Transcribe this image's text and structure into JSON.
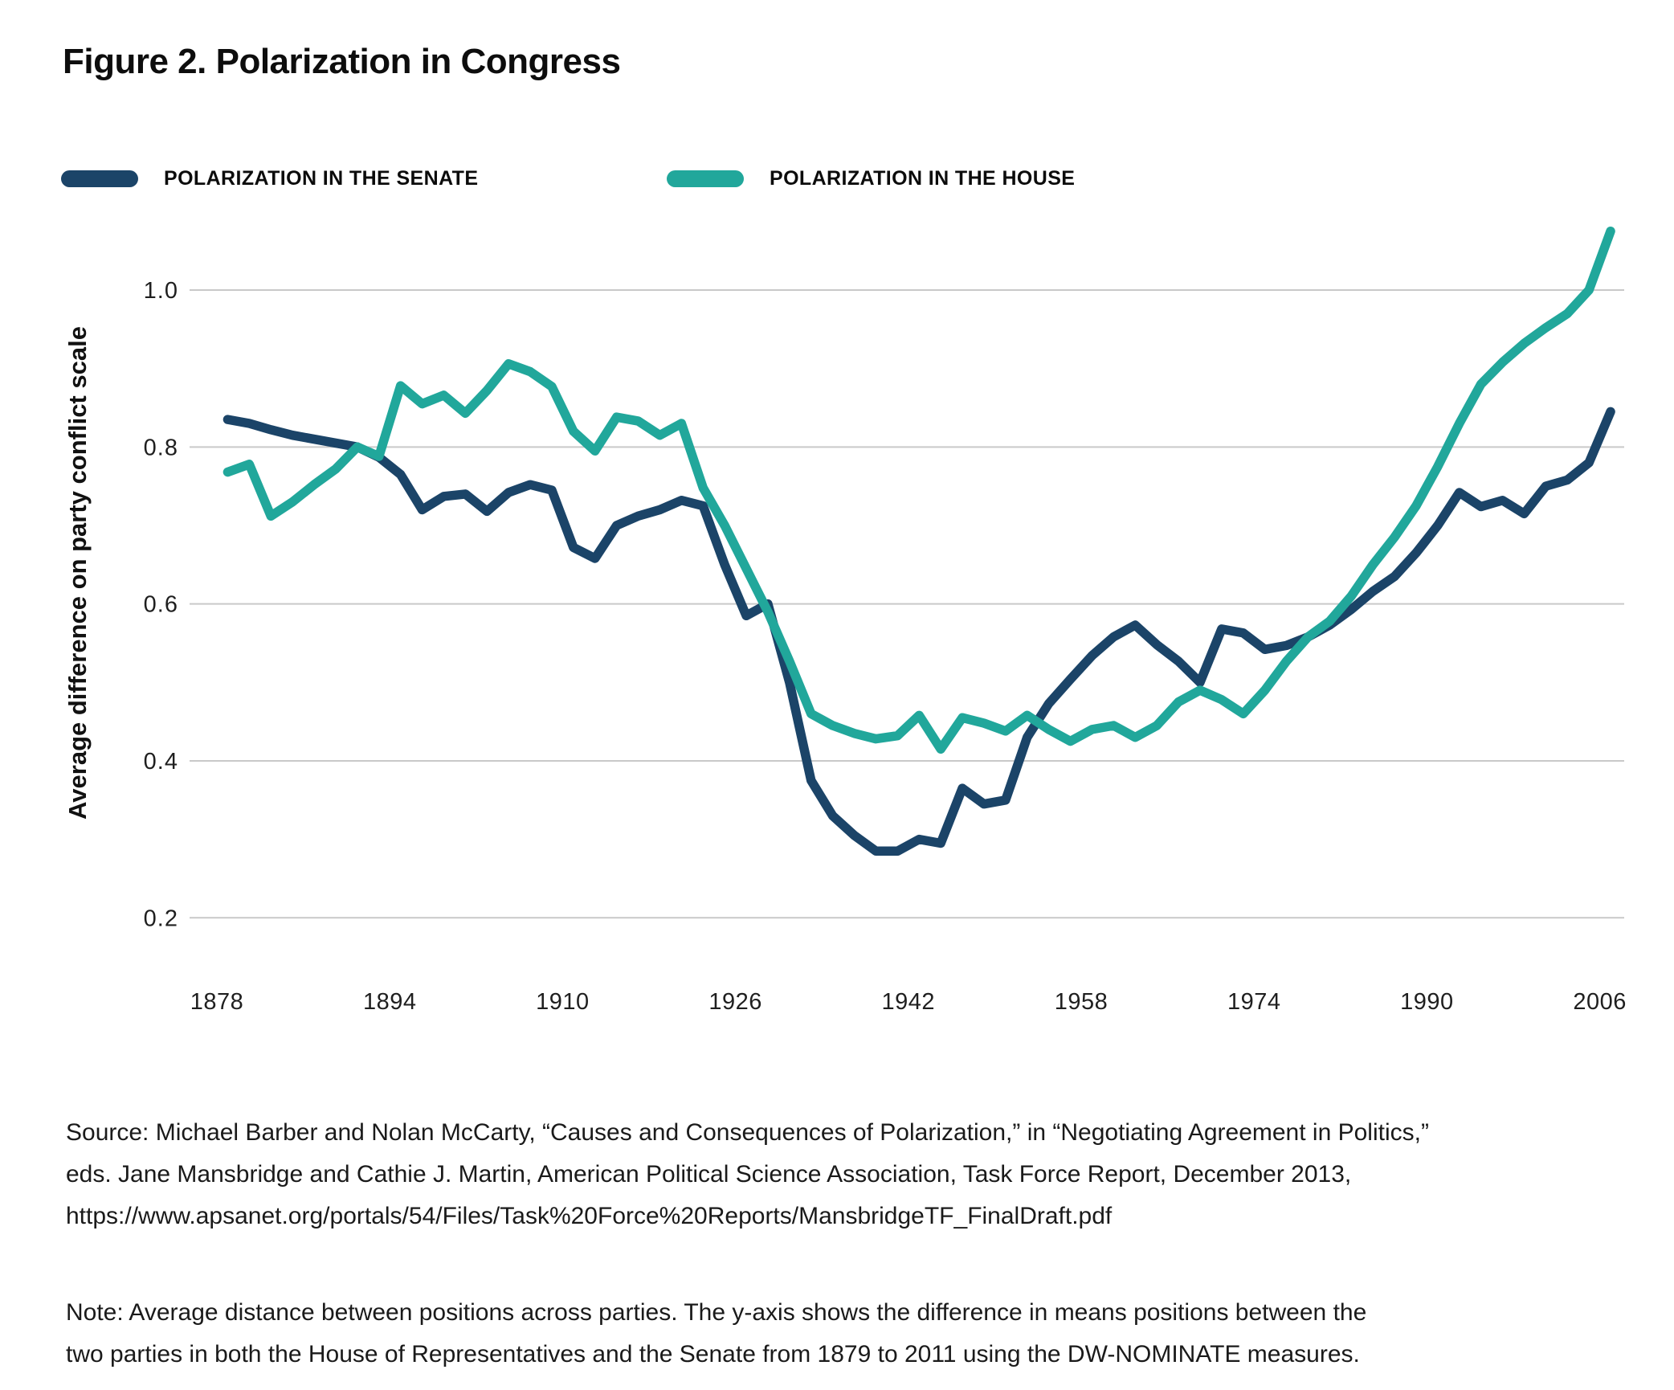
{
  "header": {
    "title": "Figure 2. Polarization in Congress"
  },
  "legend": {
    "senate": {
      "label": "POLARIZATION IN THE SENATE",
      "color": "#1b4468"
    },
    "house": {
      "label": "POLARIZATION IN THE HOUSE",
      "color": "#21a79b"
    }
  },
  "chart_data": {
    "type": "line",
    "title": "Figure 2. Polarization in Congress",
    "xlabel": "",
    "ylabel": "Average difference on party conflict scale",
    "ylim": [
      0.15,
      1.1
    ],
    "yticks": [
      0.2,
      0.4,
      0.6,
      0.8,
      1.0
    ],
    "xticks": [
      1878,
      1894,
      1910,
      1926,
      1942,
      1958,
      1974,
      1990,
      2006
    ],
    "grid": "horizontal-only",
    "legend_position": "top-left",
    "x": [
      1879,
      1881,
      1883,
      1885,
      1887,
      1889,
      1891,
      1893,
      1895,
      1897,
      1899,
      1901,
      1903,
      1905,
      1907,
      1909,
      1911,
      1913,
      1915,
      1917,
      1919,
      1921,
      1923,
      1925,
      1927,
      1929,
      1931,
      1933,
      1935,
      1937,
      1939,
      1941,
      1943,
      1945,
      1947,
      1949,
      1951,
      1953,
      1955,
      1957,
      1959,
      1961,
      1963,
      1965,
      1967,
      1969,
      1971,
      1973,
      1975,
      1977,
      1979,
      1981,
      1983,
      1985,
      1987,
      1989,
      1991,
      1993,
      1995,
      1997,
      1999,
      2001,
      2003,
      2005,
      2007
    ],
    "series": [
      {
        "name": "Polarization in the Senate",
        "color": "#1b4468",
        "values": [
          0.835,
          0.83,
          0.822,
          0.815,
          0.81,
          0.805,
          0.8,
          0.787,
          0.765,
          0.72,
          0.737,
          0.74,
          0.718,
          0.742,
          0.752,
          0.745,
          0.672,
          0.658,
          0.7,
          0.712,
          0.72,
          0.732,
          0.725,
          0.65,
          0.585,
          0.6,
          0.5,
          0.375,
          0.33,
          0.305,
          0.285,
          0.285,
          0.3,
          0.295,
          0.365,
          0.345,
          0.35,
          0.43,
          0.473,
          0.504,
          0.534,
          0.558,
          0.573,
          0.548,
          0.527,
          0.5,
          0.568,
          0.563,
          0.542,
          0.547,
          0.558,
          0.573,
          0.593,
          0.616,
          0.635,
          0.665,
          0.7,
          0.742,
          0.724,
          0.732,
          0.715,
          0.75,
          0.758,
          0.78,
          0.845
        ]
      },
      {
        "name": "Polarization in the House",
        "color": "#21a79b",
        "values": [
          0.768,
          0.778,
          0.712,
          0.73,
          0.752,
          0.772,
          0.8,
          0.788,
          0.878,
          0.855,
          0.866,
          0.843,
          0.872,
          0.906,
          0.896,
          0.877,
          0.82,
          0.795,
          0.838,
          0.833,
          0.815,
          0.83,
          0.748,
          0.7,
          0.645,
          0.59,
          0.527,
          0.46,
          0.445,
          0.435,
          0.428,
          0.432,
          0.458,
          0.415,
          0.455,
          0.448,
          0.438,
          0.458,
          0.44,
          0.425,
          0.44,
          0.445,
          0.43,
          0.445,
          0.475,
          0.49,
          0.478,
          0.46,
          0.49,
          0.527,
          0.558,
          0.578,
          0.61,
          0.65,
          0.685,
          0.725,
          0.775,
          0.83,
          0.88,
          0.908,
          0.932,
          0.952,
          0.97,
          1.0,
          1.075
        ]
      }
    ]
  },
  "footer": {
    "source_lines": [
      "Source: Michael Barber and Nolan McCarty, “Causes and Consequences of Polarization,” in “Negotiating Agreement in Politics,”",
      "eds. Jane Mansbridge and Cathie J. Martin, American Political Science Association, Task Force Report, December 2013,",
      "https://www.apsanet.org/portals/54/Files/Task%20Force%20Reports/MansbridgeTF_FinalDraft.pdf"
    ],
    "note_lines": [
      "Note: Average distance between positions across parties. The y-axis shows the difference in means positions between the",
      "two parties in both the House of Representatives and the Senate from 1879 to 2011 using the DW-NOMINATE measures."
    ]
  }
}
